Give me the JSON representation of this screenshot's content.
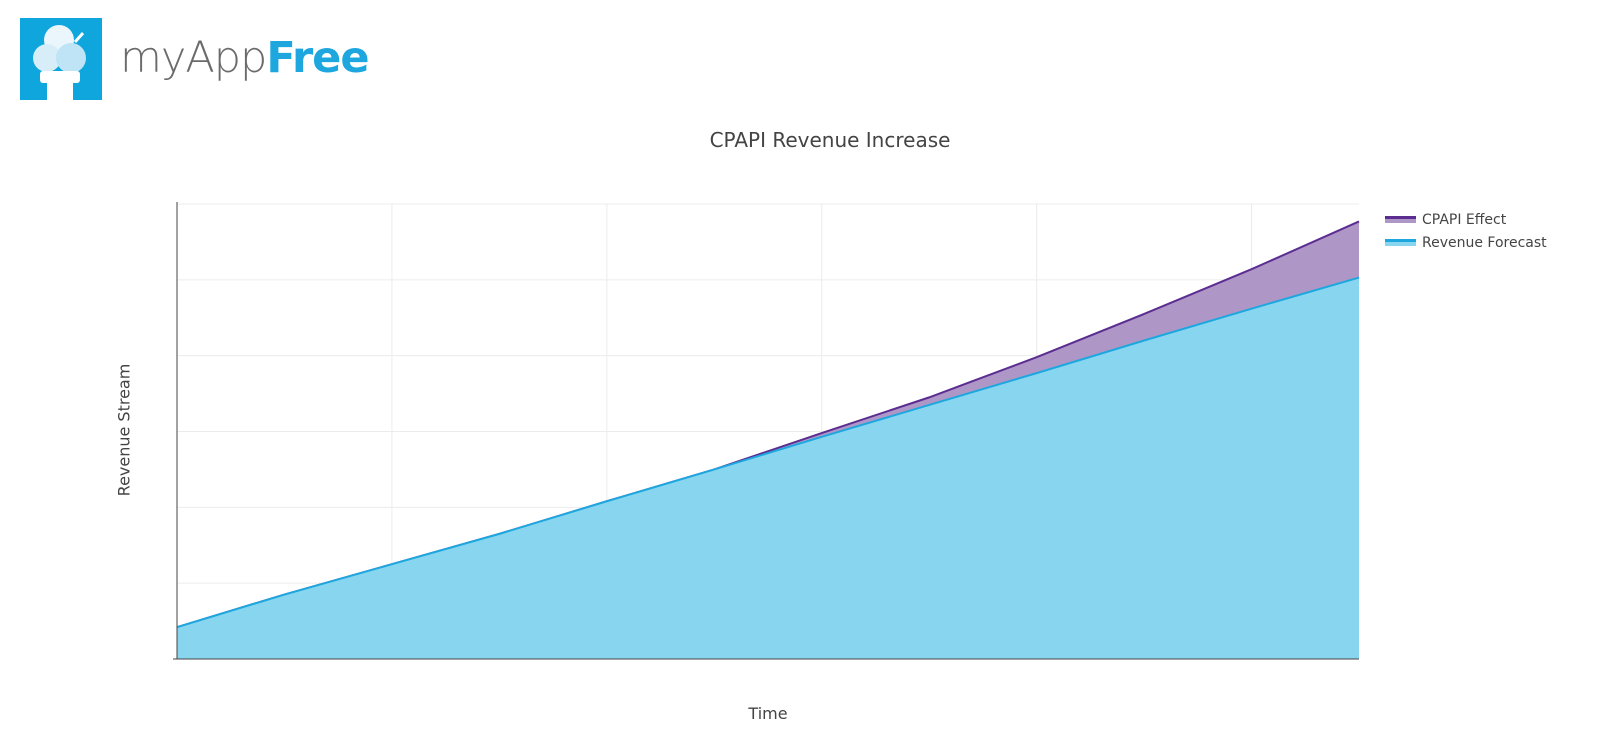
{
  "header": {
    "brand_part1": "myApp",
    "brand_part2": "Free",
    "logo_icon": "ice-cream-cone-icon",
    "logo_bg": "#0fa6dd"
  },
  "chart_data": {
    "type": "area",
    "title": "CPAPI Revenue Increase",
    "xlabel": "Time",
    "ylabel": "Revenue Stream",
    "x": [
      0,
      1,
      2,
      3,
      4,
      5,
      6,
      7,
      8,
      9,
      10,
      11
    ],
    "ylim": [
      0,
      6
    ],
    "xlim": [
      0,
      11
    ],
    "series": [
      {
        "name": "Revenue Forecast",
        "color": "#1ea7df",
        "fill": "#87d5ee",
        "values": [
          0.42,
          0.85,
          1.25,
          1.65,
          2.08,
          2.5,
          2.93,
          3.35,
          3.77,
          4.2,
          4.62,
          5.03
        ]
      },
      {
        "name": "CPAPI Effect",
        "color": "#5b2d91",
        "fill": "#ae97c7",
        "values": [
          0.42,
          0.85,
          1.25,
          1.65,
          2.08,
          2.5,
          2.98,
          3.45,
          3.98,
          4.55,
          5.14,
          5.77
        ]
      }
    ],
    "grid": true,
    "legend_position": "top-right"
  }
}
